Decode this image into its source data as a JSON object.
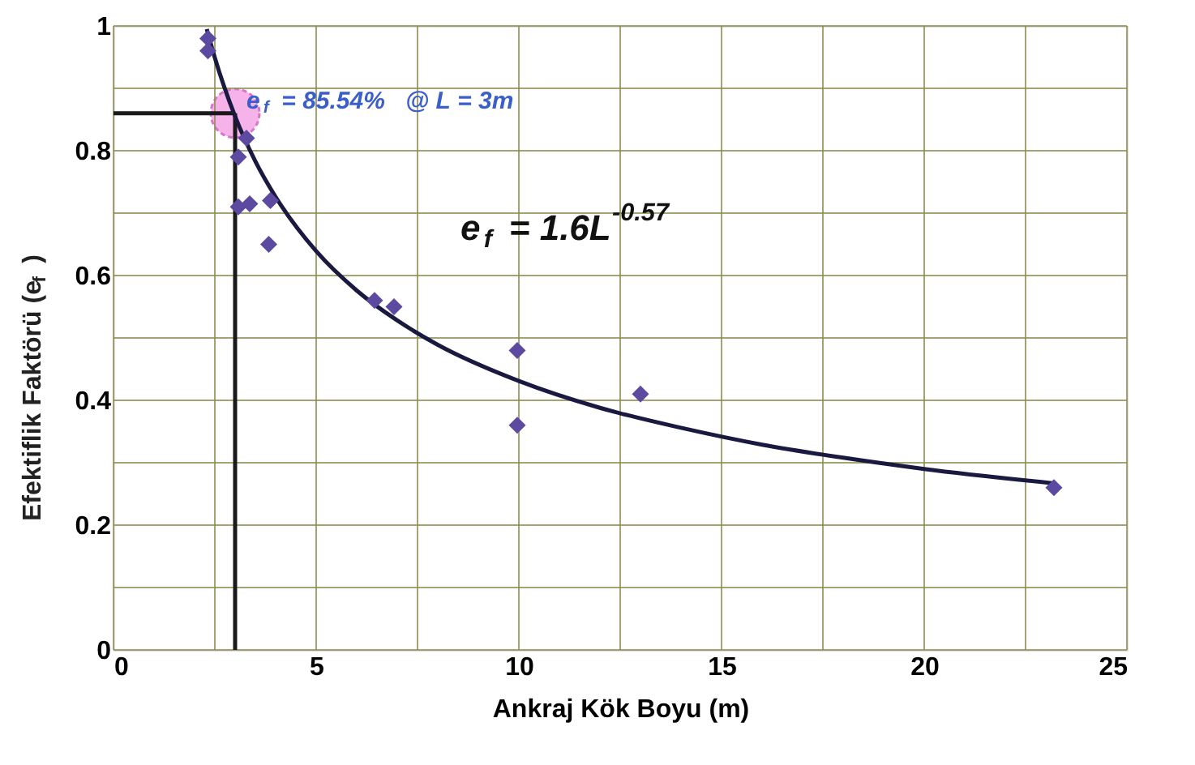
{
  "chart_data": {
    "type": "scatter",
    "xlabel": "Ankraj Kök Boyu (m)",
    "ylabel": "Efektiflik Faktörü (e$_{f}$ )",
    "xlim": [
      0,
      25
    ],
    "ylim": [
      0,
      1
    ],
    "xticks": [
      0,
      {
        "value": 2.5,
        "label": null
      },
      5,
      {
        "value": 7.5,
        "label": null
      },
      10,
      {
        "value": 12.5,
        "label": null
      },
      15,
      {
        "value": 17.5,
        "label": null
      },
      20,
      {
        "value": 22.5,
        "label": null
      },
      25
    ],
    "yticks": [
      {
        "value": 0,
        "label": "0"
      },
      {
        "value": 0.1,
        "label": null
      },
      0.2,
      {
        "value": 0.3,
        "label": null
      },
      0.4,
      {
        "value": 0.5,
        "label": null
      },
      0.6,
      {
        "value": 0.7,
        "label": null
      },
      0.8,
      {
        "value": 0.9,
        "label": null
      },
      {
        "value": 1,
        "label": "1"
      }
    ],
    "grid": true,
    "series": [
      {
        "type": "scatter",
        "color": "#5b4aa0",
        "marker": "diamond",
        "x": [
          2.33,
          2.33,
          3.28,
          3.08,
          3.08,
          3.36,
          3.87,
          3.83,
          6.44,
          6.92,
          9.96,
          9.96,
          13.0,
          23.2
        ],
        "values": [
          0.98,
          0.96,
          0.82,
          0.79,
          0.71,
          0.715,
          0.72,
          0.65,
          0.56,
          0.55,
          0.48,
          0.36,
          0.41,
          0.26
        ]
      },
      {
        "type": "line",
        "color": "#1a1a40",
        "marker": "none",
        "line_style": "solid",
        "x": [
          2.3,
          2.5,
          3,
          3.5,
          4,
          5,
          6,
          7,
          8,
          10,
          12,
          14,
          16,
          18,
          20,
          23.2
        ],
        "values": [
          0.995,
          0.949,
          0.855,
          0.783,
          0.726,
          0.639,
          0.576,
          0.528,
          0.489,
          0.431,
          0.388,
          0.356,
          0.329,
          0.308,
          0.29,
          0.267
        ]
      },
      {
        "type": "scatter",
        "color": "#f4a6e6",
        "marker": "circle",
        "x": [
          3
        ],
        "values": [
          0.86
        ]
      }
    ],
    "ref_lines": [
      {
        "axis": "x",
        "value": 3,
        "color": "#1a1a1a"
      },
      {
        "axis": "y",
        "value": 0.86,
        "color": "#1a1a1a"
      }
    ],
    "annotations": [
      "e$_{f}$ = 85.54%   @ L = 3m",
      "e$_{f}$ = 1.6L$^{-0.57}$"
    ]
  }
}
